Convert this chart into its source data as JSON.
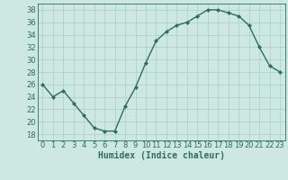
{
  "x": [
    0,
    1,
    2,
    3,
    4,
    5,
    6,
    7,
    8,
    9,
    10,
    11,
    12,
    13,
    14,
    15,
    16,
    17,
    18,
    19,
    20,
    21,
    22,
    23
  ],
  "y": [
    26,
    24,
    25,
    23,
    21,
    19,
    18.5,
    18.5,
    22.5,
    25.5,
    29.5,
    33,
    34.5,
    35.5,
    36,
    37,
    38,
    38,
    37.5,
    37,
    35.5,
    32,
    29,
    28
  ],
  "line_color": "#2e6e5e",
  "marker": "D",
  "marker_size": 2,
  "line_width": 1.0,
  "bg_color": "#cce8e0",
  "grid_color": "#aacccc",
  "xlabel": "Humidex (Indice chaleur)",
  "xlim": [
    -0.5,
    23.5
  ],
  "ylim": [
    17,
    39
  ],
  "yticks": [
    18,
    20,
    22,
    24,
    26,
    28,
    30,
    32,
    34,
    36,
    38
  ],
  "xticks": [
    0,
    1,
    2,
    3,
    4,
    5,
    6,
    7,
    8,
    9,
    10,
    11,
    12,
    13,
    14,
    15,
    16,
    17,
    18,
    19,
    20,
    21,
    22,
    23
  ],
  "xtick_labels": [
    "0",
    "1",
    "2",
    "3",
    "4",
    "5",
    "6",
    "7",
    "8",
    "9",
    "10",
    "11",
    "12",
    "13",
    "14",
    "15",
    "16",
    "17",
    "18",
    "19",
    "20",
    "21",
    "22",
    "23"
  ],
  "tick_color": "#2e6e5e",
  "xlabel_fontsize": 7,
  "tick_fontsize": 6
}
